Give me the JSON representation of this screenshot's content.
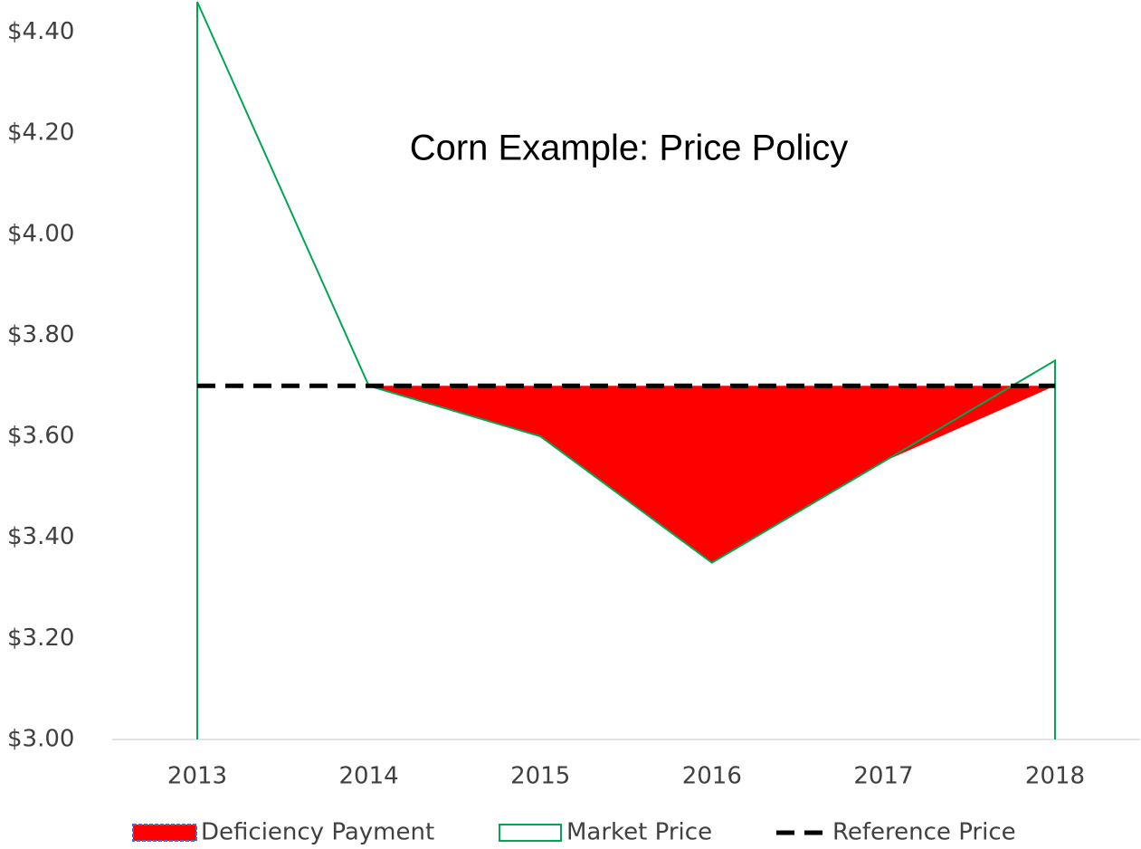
{
  "chart_data": {
    "type": "area",
    "title": "Corn Example: Price Policy",
    "categories": [
      "2013",
      "2014",
      "2015",
      "2016",
      "2017",
      "2018"
    ],
    "series": [
      {
        "name": "Deficiency Payment",
        "color": "#ff0000",
        "values": [
          0,
          0,
          0.1,
          0.35,
          0.15,
          0
        ]
      },
      {
        "name": "Market Price",
        "color": "#00a651",
        "values": [
          4.46,
          3.7,
          3.6,
          3.35,
          3.55,
          3.75
        ]
      },
      {
        "name": "Reference Price",
        "color": "#000000",
        "values": [
          3.7,
          3.7,
          3.7,
          3.7,
          3.7,
          3.7
        ]
      }
    ],
    "ylim": [
      3.0,
      4.46
    ],
    "yticks": [
      {
        "value": 3.0,
        "label": "$3.00"
      },
      {
        "value": 3.2,
        "label": "$3.20"
      },
      {
        "value": 3.4,
        "label": "$3.40"
      },
      {
        "value": 3.6,
        "label": "$3.60"
      },
      {
        "value": 3.8,
        "label": "$3.80"
      },
      {
        "value": 4.0,
        "label": "$4.00"
      },
      {
        "value": 4.2,
        "label": "$4.20"
      },
      {
        "value": 4.4,
        "label": "$4.40"
      }
    ],
    "legend": "bottom"
  }
}
